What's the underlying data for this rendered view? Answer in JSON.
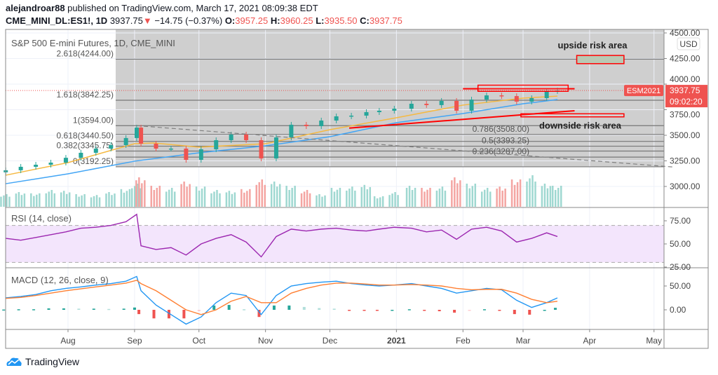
{
  "header": {
    "author": "alejandroar88",
    "published": "published on TradingView.com, March 17, 2021 08:09:38 EDT",
    "symbol": "CME_MINI_DL:ES1!, 1D",
    "last": "3937.75",
    "change": "−14.75 (−0.37%)",
    "open_label": "O:",
    "open": "3957.25",
    "high_label": "H:",
    "high": "3960.25",
    "low_label": "L:",
    "low": "3935.50",
    "close_label": "C:",
    "close": "3937.75",
    "direction_icon": "triangle-down-icon"
  },
  "logo": {
    "text": "TradingView",
    "icon": "tradingview-cloud-icon"
  },
  "colors": {
    "up": "#26a69a",
    "down": "#ef5350",
    "ma_fast": "#f5b942",
    "ma_slow": "#42a5f5",
    "rsi": "#9c27b0",
    "macd": "#2196f3",
    "signal": "#ff7f32",
    "annotation": "#ff0000",
    "fib_fill": "#cfcfcf"
  },
  "chart_data": [
    {
      "type": "candlestick",
      "title": "S&P 500 E-mini Futures, 1D, CME_MINI",
      "currency": "USD",
      "y_ticks": [
        "3000.00",
        "3250.00",
        "3500.00",
        "3750.00",
        "4000.00",
        "4250.00",
        "4500.00"
      ],
      "ylim": [
        2850,
        4520
      ],
      "x_ticks": [
        {
          "label": "Aug",
          "date": "2020-08-01"
        },
        {
          "label": "Sep",
          "date": "2020-09-01"
        },
        {
          "label": "Oct",
          "date": "2020-10-01"
        },
        {
          "label": "Nov",
          "date": "2020-11-01"
        },
        {
          "label": "Dec",
          "date": "2020-12-01"
        },
        {
          "label": "2021",
          "date": "2021-01-01"
        },
        {
          "label": "Feb",
          "date": "2021-02-01"
        },
        {
          "label": "Mar",
          "date": "2021-03-01"
        },
        {
          "label": "Apr",
          "date": "2021-04-01"
        },
        {
          "label": "May",
          "date": "2021-05-01"
        }
      ],
      "xlim": [
        "2020-07-01",
        "2021-05-10"
      ],
      "dates": [
        "2020-07-03",
        "2020-07-10",
        "2020-07-17",
        "2020-07-24",
        "2020-07-31",
        "2020-08-07",
        "2020-08-14",
        "2020-08-21",
        "2020-08-28",
        "2020-09-02",
        "2020-09-04",
        "2020-09-11",
        "2020-09-18",
        "2020-09-25",
        "2020-10-02",
        "2020-10-09",
        "2020-10-16",
        "2020-10-23",
        "2020-10-30",
        "2020-11-06",
        "2020-11-13",
        "2020-11-20",
        "2020-11-27",
        "2020-12-04",
        "2020-12-11",
        "2020-12-18",
        "2020-12-24",
        "2020-12-31",
        "2021-01-08",
        "2021-01-15",
        "2021-01-22",
        "2021-01-29",
        "2021-02-05",
        "2021-02-12",
        "2021-02-19",
        "2021-02-26",
        "2021-03-05",
        "2021-03-12",
        "2021-03-17"
      ],
      "close": [
        3158,
        3192,
        3212,
        3233,
        3280,
        3329,
        3370,
        3404,
        3473,
        3575,
        3418,
        3370,
        3370,
        3260,
        3363,
        3452,
        3507,
        3452,
        3274,
        3479,
        3603,
        3589,
        3644,
        3685,
        3692,
        3726,
        3740,
        3760,
        3808,
        3795,
        3836,
        3740,
        3849,
        3890,
        3883,
        3829,
        3863,
        3932,
        3937.75
      ],
      "volume_relative": [
        30,
        35,
        32,
        40,
        38,
        30,
        28,
        35,
        42,
        55,
        70,
        50,
        45,
        60,
        48,
        40,
        38,
        42,
        65,
        60,
        50,
        40,
        30,
        45,
        48,
        52,
        25,
        35,
        50,
        45,
        48,
        70,
        55,
        45,
        48,
        65,
        75,
        55,
        50
      ],
      "ma_fast": {
        "dates": [
          "2020-07-03",
          "2020-08-01",
          "2020-09-01",
          "2020-09-10",
          "2020-10-01",
          "2020-11-01",
          "2020-12-01",
          "2021-01-01",
          "2021-02-01",
          "2021-03-01",
          "2021-03-17"
        ],
        "values": [
          3110,
          3233,
          3418,
          3425,
          3384,
          3418,
          3555,
          3671,
          3795,
          3863,
          3883
        ]
      },
      "ma_slow": {
        "dates": [
          "2020-07-03",
          "2020-08-01",
          "2020-09-01",
          "2020-10-01",
          "2020-11-01",
          "2020-12-01",
          "2021-01-01",
          "2021-02-01",
          "2021-03-01",
          "2021-03-17"
        ],
        "values": [
          3027,
          3123,
          3247,
          3329,
          3397,
          3486,
          3623,
          3712,
          3808,
          3849
        ]
      },
      "last_price_label": {
        "symbol": "ESM2021",
        "price": "3937.75",
        "countdown": "09:02:20"
      },
      "fibonacci": {
        "from_date": "2020-09-02",
        "to_date": "2021-05-10",
        "levels": [
          {
            "label": "2.618(4244.00)",
            "price": 4244.0
          },
          {
            "label": "1.618(3842.25)",
            "price": 3842.25
          },
          {
            "label": "1(3594.00)",
            "price": 3594.0
          },
          {
            "label": "0.786(3508.00)",
            "price": 3508.0
          },
          {
            "label": "0.618(3440.50)",
            "price": 3440.5
          },
          {
            "label": "0.5(3393.25)",
            "price": 3393.25
          },
          {
            "label": "0.382(3345.75)",
            "price": 3345.75
          },
          {
            "label": "0.236(3287.00)",
            "price": 3287.0
          },
          {
            "label": "0(3192.25)",
            "price": 3192.25
          }
        ]
      },
      "trendlines": [
        {
          "style": "dashed",
          "color": "#808080",
          "points": [
            [
              "2020-09-02",
              3594
            ],
            [
              "2021-05-10",
              3190
            ]
          ]
        },
        {
          "style": "solid",
          "color": "#ff0000",
          "points": [
            [
              "2020-12-10",
              3570
            ],
            [
              "2021-03-25",
              3740
            ]
          ]
        },
        {
          "style": "solid",
          "color": "#ff0000",
          "points": [
            [
              "2021-02-01",
              3955
            ],
            [
              "2021-03-25",
              3955
            ]
          ]
        }
      ],
      "zones": [
        {
          "label": "",
          "price_top": 3990,
          "price_bottom": 3930,
          "from": "2021-02-08",
          "to": "2021-03-22"
        },
        {
          "label": "upside risk area",
          "price_top": 4280,
          "price_bottom": 4200,
          "from": "2021-03-26",
          "to": "2021-04-17"
        },
        {
          "label": "downside risk area",
          "price_top": 3710,
          "price_bottom": 3680,
          "from": "2021-02-28",
          "to": "2021-04-17"
        }
      ]
    },
    {
      "type": "line",
      "title": "RSI (14, close)",
      "y_ticks": [
        "25.00",
        "50.00",
        "75.00"
      ],
      "ylim": [
        22,
        87
      ],
      "band": [
        30,
        70
      ],
      "values": [
        56,
        54,
        57,
        60,
        63,
        67,
        68,
        70,
        74,
        82,
        48,
        44,
        46,
        38,
        50,
        56,
        60,
        52,
        36,
        58,
        66,
        64,
        66,
        67,
        65,
        64,
        66,
        68,
        67,
        63,
        65,
        55,
        66,
        68,
        64,
        52,
        56,
        62,
        58
      ]
    },
    {
      "type": "line",
      "title": "MACD (12, 26, close, 9)",
      "y_ticks": [
        "0.00",
        "50.00"
      ],
      "ylim": [
        -45,
        82
      ],
      "macd": [
        25,
        28,
        32,
        40,
        45,
        48,
        52,
        55,
        60,
        70,
        40,
        10,
        -10,
        -30,
        -15,
        15,
        35,
        30,
        -10,
        30,
        50,
        55,
        58,
        60,
        55,
        52,
        50,
        52,
        55,
        50,
        45,
        35,
        40,
        45,
        42,
        20,
        5,
        15,
        25
      ],
      "signal": [
        24,
        26,
        30,
        35,
        40,
        44,
        48,
        52,
        56,
        62,
        55,
        40,
        20,
        0,
        -10,
        0,
        18,
        28,
        15,
        15,
        35,
        45,
        52,
        56,
        56,
        54,
        52,
        52,
        53,
        52,
        50,
        45,
        42,
        43,
        43,
        35,
        22,
        15,
        18
      ]
    }
  ]
}
